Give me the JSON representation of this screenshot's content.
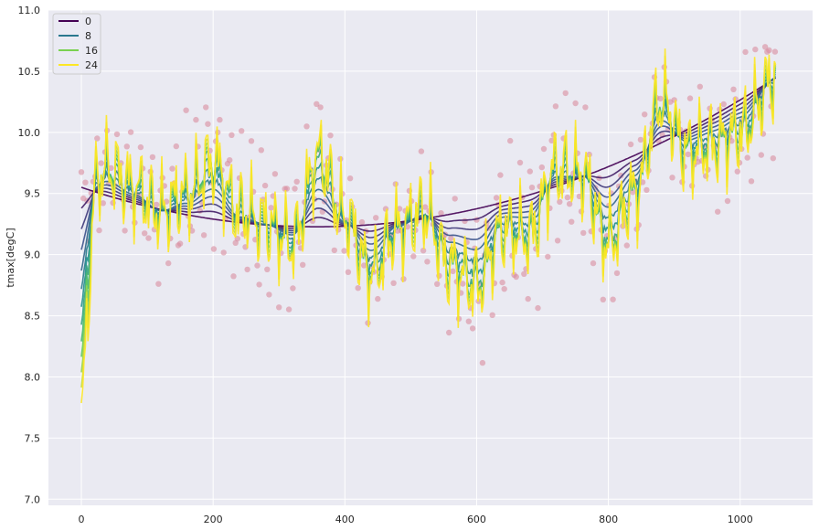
{
  "chart_data": {
    "type": "line",
    "title": "",
    "xlabel": "",
    "ylabel": "tmax[degC]",
    "xlim": [
      -50,
      1110
    ],
    "ylim": [
      6.95,
      11.0
    ],
    "xticks": [
      0,
      200,
      400,
      600,
      800,
      1000
    ],
    "yticks": [
      7.0,
      7.5,
      8.0,
      8.5,
      9.0,
      9.5,
      10.0,
      10.5,
      11.0
    ],
    "grid": true,
    "legend_position": "top-left",
    "legend": [
      {
        "label": "0",
        "color": "#440154"
      },
      {
        "label": "8",
        "color": "#2a788e"
      },
      {
        "label": "16",
        "color": "#7ad151"
      },
      {
        "label": "24",
        "color": "#fde725"
      }
    ],
    "colors": {
      "background": "#eaeaf2",
      "grid": "#ffffff",
      "scatter": "#d98c9e"
    },
    "x_range": [
      0,
      1055
    ],
    "scatter_description": "daily tmax observations, pink semi-transparent points",
    "anchor_points": {
      "x": [
        0,
        40,
        80,
        120,
        160,
        200,
        240,
        280,
        320,
        360,
        400,
        440,
        480,
        520,
        560,
        600,
        640,
        680,
        720,
        760,
        800,
        840,
        880,
        920,
        960,
        1000,
        1055
      ],
      "y": [
        9.4,
        9.7,
        9.55,
        9.35,
        9.5,
        9.75,
        9.35,
        9.25,
        9.1,
        9.8,
        9.3,
        8.85,
        9.2,
        9.35,
        8.9,
        8.75,
        9.2,
        9.15,
        9.7,
        9.65,
        9.1,
        9.5,
        10.25,
        9.85,
        9.9,
        10.0,
        10.45
      ]
    },
    "series": [
      {
        "name": "0",
        "color": "#440154"
      },
      {
        "name": "8",
        "color": "#2a788e"
      },
      {
        "name": "16",
        "color": "#7ad151"
      },
      {
        "name": "24",
        "color": "#fde725"
      }
    ]
  }
}
